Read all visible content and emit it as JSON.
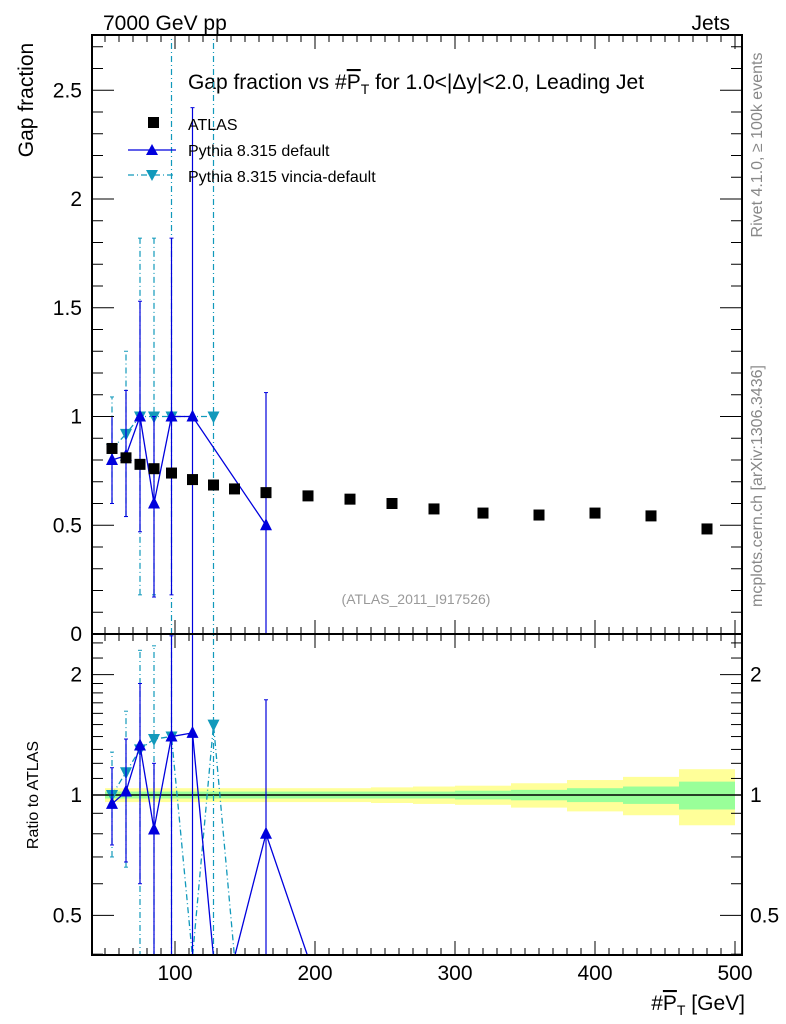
{
  "header": {
    "left": "7000 GeV pp",
    "right": "Jets"
  },
  "side": {
    "rivet": "Rivet 4.1.0, ≥ 100k events",
    "mcplots": "mcplots.cern.ch [arXiv:1306.3436]"
  },
  "colors": {
    "atlas": "#000000",
    "default": "#0000dd",
    "vincia": "#1199bb",
    "band_inner": "#99ff99",
    "band_outer": "#ffff99"
  },
  "chart_data": [
    {
      "type": "scatter",
      "title_pre": "Gap fraction vs #",
      "title_var": "P",
      "title_sub": "T",
      "title_post": " for 1.0<|Δy|<2.0, Leading Jet",
      "ylabel": "Gap fraction",
      "analysis": "(ATLAS_2011_I917526)",
      "xlim": [
        40.7,
        505
      ],
      "ylim": [
        0,
        2.75
      ],
      "yticks": [
        0,
        0.5,
        1,
        1.5,
        2,
        2.5
      ],
      "legend_position": "top-left",
      "series": [
        {
          "name": "ATLAS",
          "marker": "square",
          "x": [
            55,
            65,
            75,
            85,
            97.5,
            112.5,
            127.5,
            142.5,
            165,
            195,
            225,
            255,
            285,
            320,
            360,
            400,
            440,
            480
          ],
          "y": [
            0.853,
            0.81,
            0.78,
            0.76,
            0.74,
            0.71,
            0.685,
            0.667,
            0.65,
            0.635,
            0.62,
            0.6,
            0.575,
            0.556,
            0.547,
            0.556,
            0.543,
            0.483
          ]
        },
        {
          "name": "Pythia 8.315 default",
          "marker": "triangle-up",
          "x": [
            55,
            65,
            75,
            85,
            97.5,
            112.5,
            165
          ],
          "y": [
            0.8,
            0.82,
            1.0,
            0.6,
            1.0,
            1.0,
            0.5
          ],
          "ylo": [
            0.6,
            0.54,
            0.47,
            0.17,
            0.18,
            0,
            0
          ],
          "yhi": [
            1.0,
            1.12,
            1.53,
            1.0,
            1.82,
            2.42,
            1.11
          ]
        },
        {
          "name": "Pythia 8.315 vincia-default",
          "marker": "triangle-down",
          "x": [
            55,
            65,
            75,
            85,
            97.5,
            127.5
          ],
          "y": [
            0.85,
            0.92,
            1.0,
            1.0,
            1.0,
            1.0
          ],
          "ylo": [
            0.6,
            0.54,
            0.18,
            0.18,
            0,
            0
          ],
          "yhi": [
            1.09,
            1.3,
            1.82,
            1.82,
            2.8,
            2.8
          ]
        }
      ]
    },
    {
      "type": "line",
      "ylabel": "Ratio to ATLAS",
      "xlabel_pre": "#",
      "xlabel_var": "P",
      "xlabel_sub": "T",
      "xlabel_post": " [GeV]",
      "xticks": [
        100,
        200,
        300,
        400,
        500
      ],
      "yscale": "log",
      "ylim": [
        0.4,
        2.5
      ],
      "yticks": [
        0.5,
        1,
        2
      ],
      "band_edges": [
        50,
        60,
        70,
        80,
        90,
        105,
        120,
        135,
        150,
        180,
        210,
        240,
        270,
        300,
        340,
        380,
        420,
        460,
        500
      ],
      "band_inner": [
        0.02,
        0.02,
        0.02,
        0.02,
        0.02,
        0.02,
        0.02,
        0.02,
        0.02,
        0.02,
        0.02,
        0.02,
        0.02,
        0.025,
        0.03,
        0.04,
        0.05,
        0.08
      ],
      "band_outer": [
        0.04,
        0.04,
        0.04,
        0.04,
        0.04,
        0.04,
        0.04,
        0.04,
        0.04,
        0.04,
        0.04,
        0.045,
        0.05,
        0.055,
        0.07,
        0.09,
        0.11,
        0.16
      ],
      "series": [
        {
          "name": "Pythia 8.315 default",
          "x": [
            55,
            65,
            75,
            85,
            97.5,
            112.5,
            127.5,
            142.5,
            165,
            195
          ],
          "y": [
            0.95,
            1.02,
            1.33,
            0.82,
            1.4,
            1.43,
            0,
            0,
            0.8,
            0
          ],
          "ylo": [
            0.75,
            0.68,
            0.6,
            0.2,
            0.2,
            0,
            0,
            0,
            0,
            0
          ],
          "yhi": [
            1.17,
            1.38,
            1.9,
            1.2,
            2.5,
            3.4,
            0,
            0,
            1.73,
            0
          ]
        },
        {
          "name": "Pythia 8.315 vincia-default",
          "x": [
            55,
            65,
            75,
            85,
            97.5,
            112.5,
            127.5,
            142.5
          ],
          "y": [
            1.0,
            1.14,
            1.3,
            1.38,
            1.4,
            0,
            1.5,
            0
          ],
          "ylo": [
            0.7,
            0.66,
            0.2,
            0.2,
            0,
            0,
            0,
            0
          ],
          "yhi": [
            1.28,
            1.62,
            2.3,
            2.36,
            2.7,
            0,
            3.0,
            0
          ]
        }
      ]
    }
  ]
}
